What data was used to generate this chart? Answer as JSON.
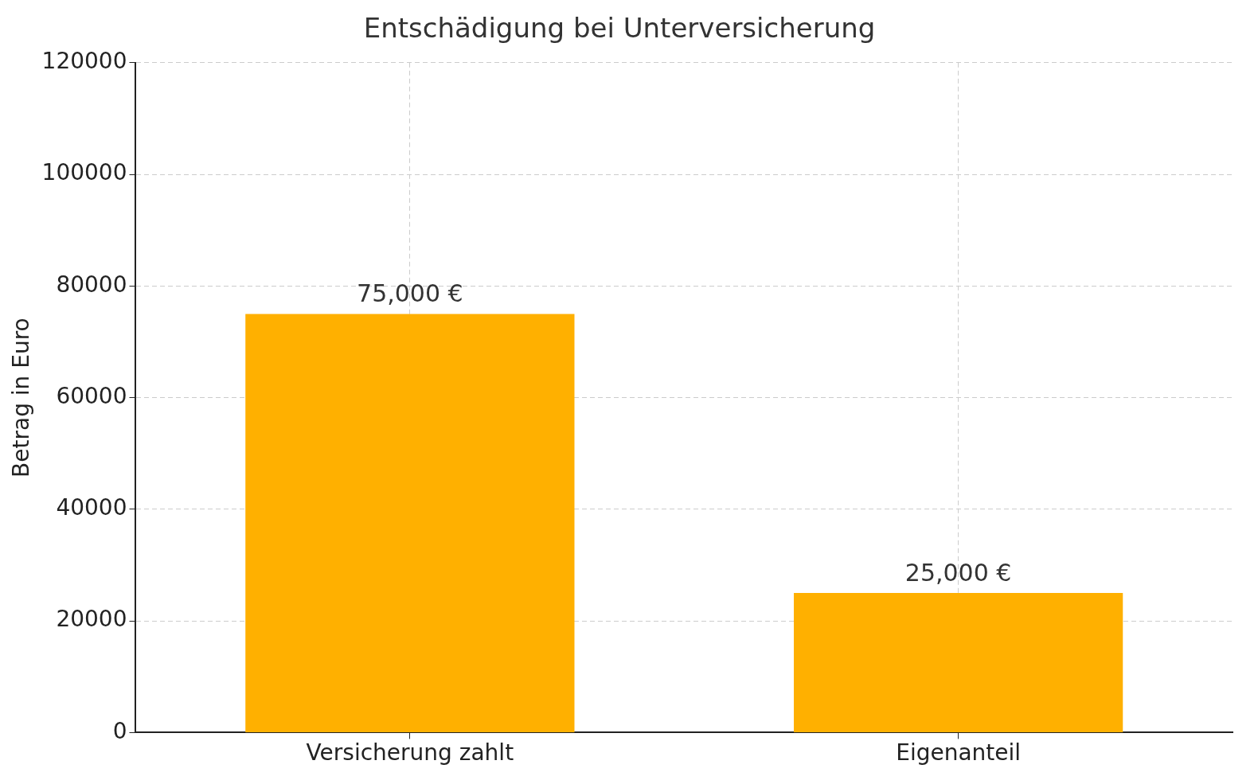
{
  "chart_data": {
    "type": "bar",
    "title": "Entschädigung bei Unterversicherung",
    "ylabel": "Betrag in Euro",
    "categories": [
      "Versicherung zahlt",
      "Eigenanteil"
    ],
    "values": [
      75000,
      25000
    ],
    "color": "#ffb000",
    "value_labels": [
      "75,000 €",
      "25,000 €"
    ],
    "ylim": [
      0,
      120000
    ],
    "yticks": [
      0,
      20000,
      40000,
      60000,
      80000,
      100000,
      120000
    ],
    "grid": true,
    "legend": false
  }
}
